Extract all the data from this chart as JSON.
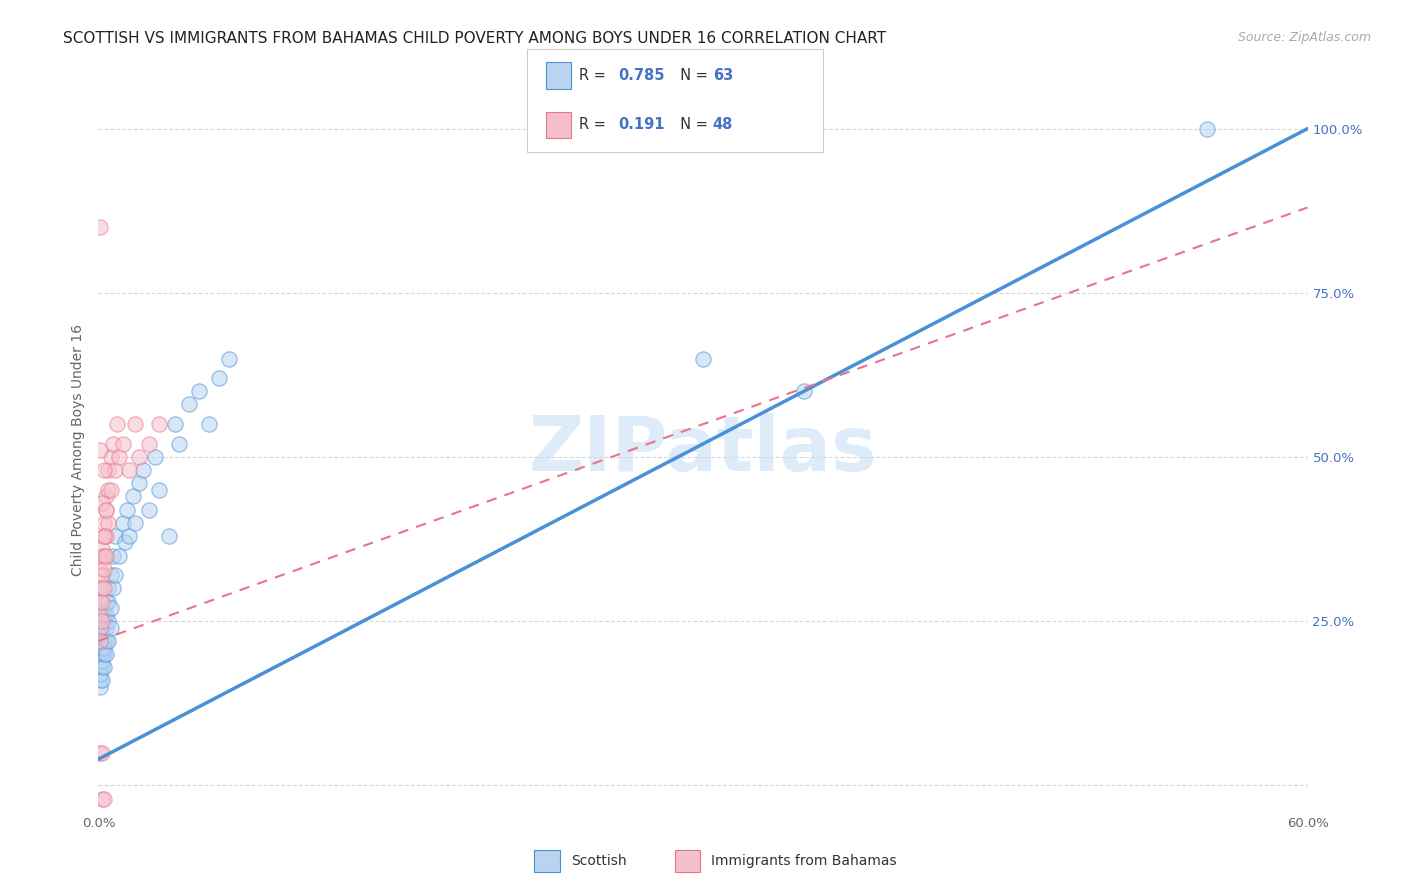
{
  "title": "SCOTTISH VS IMMIGRANTS FROM BAHAMAS CHILD POVERTY AMONG BOYS UNDER 16 CORRELATION CHART",
  "source": "Source: ZipAtlas.com",
  "ylabel": "Child Poverty Among Boys Under 16",
  "ytick_labels": [
    "",
    "25.0%",
    "50.0%",
    "75.0%",
    "100.0%"
  ],
  "xlim": [
    0.0,
    0.6
  ],
  "ylim": [
    -0.04,
    1.06
  ],
  "watermark": "ZIPatlas",
  "scottish_x": [
    0.001,
    0.001,
    0.001,
    0.001,
    0.001,
    0.001,
    0.001,
    0.001,
    0.001,
    0.001,
    0.002,
    0.002,
    0.002,
    0.002,
    0.002,
    0.002,
    0.002,
    0.002,
    0.003,
    0.003,
    0.003,
    0.003,
    0.003,
    0.003,
    0.004,
    0.004,
    0.004,
    0.004,
    0.004,
    0.005,
    0.005,
    0.005,
    0.005,
    0.006,
    0.006,
    0.006,
    0.007,
    0.007,
    0.008,
    0.008,
    0.01,
    0.012,
    0.013,
    0.014,
    0.015,
    0.017,
    0.018,
    0.02,
    0.022,
    0.025,
    0.028,
    0.03,
    0.035,
    0.038,
    0.04,
    0.045,
    0.05,
    0.055,
    0.06,
    0.065,
    0.3,
    0.35,
    0.55
  ],
  "scottish_y": [
    0.18,
    0.2,
    0.22,
    0.16,
    0.19,
    0.21,
    0.15,
    0.23,
    0.17,
    0.24,
    0.2,
    0.18,
    0.22,
    0.19,
    0.24,
    0.16,
    0.21,
    0.23,
    0.25,
    0.2,
    0.22,
    0.18,
    0.26,
    0.21,
    0.28,
    0.22,
    0.24,
    0.2,
    0.26,
    0.3,
    0.25,
    0.22,
    0.28,
    0.32,
    0.27,
    0.24,
    0.35,
    0.3,
    0.38,
    0.32,
    0.35,
    0.4,
    0.37,
    0.42,
    0.38,
    0.44,
    0.4,
    0.46,
    0.48,
    0.42,
    0.5,
    0.45,
    0.38,
    0.55,
    0.52,
    0.58,
    0.6,
    0.55,
    0.62,
    0.65,
    0.65,
    0.6,
    1.0
  ],
  "bahamas_x": [
    0.001,
    0.001,
    0.001,
    0.001,
    0.001,
    0.001,
    0.001,
    0.002,
    0.002,
    0.002,
    0.002,
    0.002,
    0.002,
    0.003,
    0.003,
    0.003,
    0.003,
    0.003,
    0.004,
    0.004,
    0.004,
    0.004,
    0.005,
    0.005,
    0.005,
    0.006,
    0.006,
    0.007,
    0.008,
    0.009,
    0.01,
    0.012,
    0.015,
    0.018,
    0.02,
    0.025,
    0.03,
    0.001,
    0.001,
    0.002,
    0.003,
    0.003,
    0.004,
    0.002,
    0.003,
    0.001,
    0.002
  ],
  "bahamas_y": [
    0.3,
    0.28,
    0.26,
    0.32,
    0.24,
    0.34,
    0.22,
    0.35,
    0.32,
    0.3,
    0.28,
    0.36,
    0.25,
    0.38,
    0.35,
    0.33,
    0.3,
    0.4,
    0.42,
    0.38,
    0.35,
    0.44,
    0.45,
    0.4,
    0.48,
    0.5,
    0.45,
    0.52,
    0.48,
    0.55,
    0.5,
    0.52,
    0.48,
    0.55,
    0.5,
    0.52,
    0.55,
    0.85,
    0.51,
    0.43,
    0.48,
    0.38,
    0.42,
    -0.02,
    -0.02,
    0.05,
    0.05
  ],
  "scottish_line": {
    "x0": 0.0,
    "y0": 0.04,
    "x1": 0.6,
    "y1": 1.0
  },
  "bahamas_line": {
    "x0": 0.0,
    "y0": 0.22,
    "x1": 0.6,
    "y1": 0.88
  },
  "title_fontsize": 11,
  "source_fontsize": 9,
  "axis_label_fontsize": 10,
  "tick_fontsize": 9.5,
  "scatter_size": 120,
  "scatter_alpha": 0.55,
  "background_color": "#ffffff",
  "grid_color": "#d8d8d8",
  "blue_color": "#4a90d9",
  "pink_color": "#e8748a",
  "blue_fill": "#b8d4f0",
  "pink_fill": "#f5c0cc",
  "text_blue": "#4472c4",
  "text_dark": "#333333",
  "watermark_color": "#c8dff5",
  "ytick_positions": [
    0.0,
    0.25,
    0.5,
    0.75,
    1.0
  ]
}
